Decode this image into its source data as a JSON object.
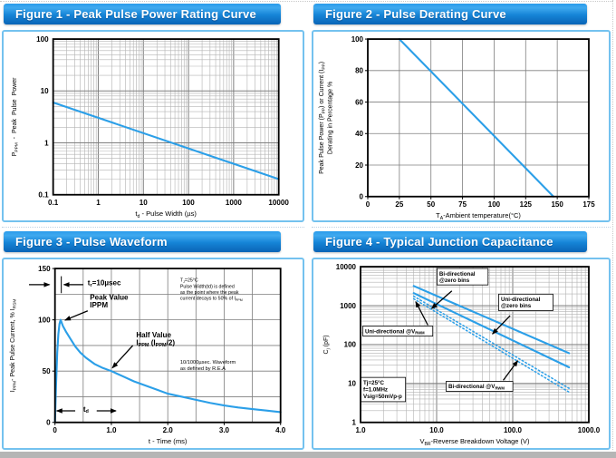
{
  "theme": {
    "header_gradient_top": "#2a9ceb",
    "header_gradient_mid": "#1584d6",
    "header_gradient_bottom": "#0a64b6",
    "header_text": "#ffffff",
    "panel_border": "#74c2ef",
    "line_blue": "#2b9fe8",
    "grid_major": "#7f7f7f",
    "grid_minor": "#b3b3b3",
    "page_edge_gray": "#b5b5b5"
  },
  "figures": [
    {
      "title": "Figure 1 - Peak Pulse Power Rating Curve",
      "chart_data": {
        "type": "line",
        "x_scale": "log",
        "y_scale": "log",
        "x_range": [
          0.1,
          10000
        ],
        "y_range": [
          0.1,
          100
        ],
        "x_ticks": [
          {
            "v": 0.1,
            "label": "0.1"
          },
          {
            "v": 1,
            "label": "1"
          },
          {
            "v": 10,
            "label": "10"
          },
          {
            "v": 100,
            "label": "100"
          },
          {
            "v": 1000,
            "label": "1000"
          },
          {
            "v": 10000,
            "label": "10000"
          }
        ],
        "y_ticks": [
          {
            "v": 0.1,
            "label": "0.1"
          },
          {
            "v": 1,
            "label": "1"
          },
          {
            "v": 10,
            "label": "10"
          },
          {
            "v": 100,
            "label": "100"
          }
        ],
        "xlabel": [
          {
            "t": "t"
          },
          {
            "t": "d",
            "sub": true
          },
          {
            "t": " - Pulse Width (µs)"
          }
        ],
        "ylabel": [
          [
            {
              "t": "P"
            },
            {
              "t": "PPM",
              "sub": true
            },
            {
              "t": "  -  Peak  Pulse  Power"
            }
          ]
        ],
        "series": [
          {
            "name": "peak-pulse-power",
            "style": "solid",
            "points": [
              [
                0.1,
                6
              ],
              [
                10000,
                0.2
              ]
            ]
          }
        ]
      }
    },
    {
      "title": "Figure 2 - Pulse Derating Curve",
      "chart_data": {
        "type": "line",
        "x_scale": "linear",
        "y_scale": "linear",
        "x_range": [
          0,
          175
        ],
        "y_range": [
          0,
          100
        ],
        "x_grid_step": 25,
        "y_grid_step": 20,
        "x_ticks": [
          {
            "v": 0,
            "label": "0"
          },
          {
            "v": 25,
            "label": "25"
          },
          {
            "v": 50,
            "label": "50"
          },
          {
            "v": 75,
            "label": "75"
          },
          {
            "v": 100,
            "label": "100"
          },
          {
            "v": 125,
            "label": "125"
          },
          {
            "v": 150,
            "label": "150"
          },
          {
            "v": 175,
            "label": "175"
          }
        ],
        "y_ticks": [
          {
            "v": 0,
            "label": "0"
          },
          {
            "v": 20,
            "label": "20"
          },
          {
            "v": 40,
            "label": "40"
          },
          {
            "v": 60,
            "label": "60"
          },
          {
            "v": 80,
            "label": "80"
          },
          {
            "v": 100,
            "label": "100"
          }
        ],
        "xlabel": [
          {
            "t": "T"
          },
          {
            "t": "A",
            "sub": true
          },
          {
            "t": "-Ambient temperature(°C)"
          }
        ],
        "ylabel": [
          [
            {
              "t": "Peak Pulse Power (P"
            },
            {
              "t": "PP",
              "sub": true
            },
            {
              "t": ") or Current (I"
            },
            {
              "t": "PP",
              "sub": true
            },
            {
              "t": ")"
            }
          ],
          [
            {
              "t": "Derating in Percentage %"
            }
          ]
        ],
        "series": [
          {
            "name": "derating",
            "style": "solid",
            "points": [
              [
                25,
                100
              ],
              [
                147,
                0
              ]
            ]
          }
        ]
      }
    },
    {
      "title": "Figure 3 - Pulse Waveform",
      "chart_data": {
        "type": "line",
        "x_scale": "linear",
        "y_scale": "linear",
        "x_range": [
          0,
          4
        ],
        "y_range": [
          0,
          150
        ],
        "x_grid_step": 0.5,
        "y_grid_step": 25,
        "x_ticks": [
          {
            "v": 0,
            "label": "0"
          },
          {
            "v": 1,
            "label": "1.0"
          },
          {
            "v": 2,
            "label": "2.0"
          },
          {
            "v": 3,
            "label": "3.0"
          },
          {
            "v": 4,
            "label": "4.0"
          }
        ],
        "y_ticks": [
          {
            "v": 0,
            "label": "0"
          },
          {
            "v": 50,
            "label": "50"
          },
          {
            "v": 100,
            "label": "100"
          },
          {
            "v": 150,
            "label": "150"
          }
        ],
        "xlabel": [
          {
            "t": "t - Time (ms)"
          }
        ],
        "ylabel": [
          [
            {
              "t": "I"
            },
            {
              "t": "PPM",
              "sub": true
            },
            {
              "t": "- Peak Pulse Current, % I"
            },
            {
              "t": "RSM",
              "sub": true
            }
          ]
        ],
        "series": [
          {
            "name": "pulse-waveform",
            "style": "solid",
            "points": [
              [
                0,
                0
              ],
              [
                0.02,
                38
              ],
              [
                0.04,
                68
              ],
              [
                0.06,
                86
              ],
              [
                0.08,
                96
              ],
              [
                0.1,
                100
              ],
              [
                0.14,
                94
              ],
              [
                0.2,
                88
              ],
              [
                0.28,
                81
              ],
              [
                0.36,
                74
              ],
              [
                0.45,
                68
              ],
              [
                0.55,
                63
              ],
              [
                0.7,
                57
              ],
              [
                0.85,
                53
              ],
              [
                1.0,
                50
              ],
              [
                1.2,
                45
              ],
              [
                1.4,
                40
              ],
              [
                1.6,
                36
              ],
              [
                1.8,
                32
              ],
              [
                2.0,
                28
              ],
              [
                2.25,
                25
              ],
              [
                2.5,
                22
              ],
              [
                2.75,
                19
              ],
              [
                3.0,
                16.5
              ],
              [
                3.25,
                14.5
              ],
              [
                3.5,
                13
              ],
              [
                3.75,
                11.5
              ],
              [
                4.0,
                10
              ]
            ]
          }
        ],
        "annotations": [
          {
            "name": "rise-time-label",
            "lines": [
              [
                {
                  "t": "t"
                },
                {
                  "t": "r",
                  "sub": true
                },
                {
                  "t": "=10µsec"
                }
              ]
            ],
            "fx": 0.145,
            "fy": 0.062,
            "size": 8,
            "bold": true,
            "arrows": [
              {
                "from": [
                  -0.115,
                  0.105
                ],
                "to": [
                  -0.025,
                  0.105
                ]
              },
              {
                "from": [
                  0.125,
                  0.105
                ],
                "to": [
                  0.04,
                  0.105
                ]
              }
            ],
            "ticklines": [
              {
                "from": [
                  0.028,
                  0.05
                ],
                "to": [
                  0.028,
                  0.16
                ]
              }
            ]
          },
          {
            "name": "peak-value-label",
            "lines": [
              "Peak Value",
              "IPPM"
            ],
            "fx": 0.155,
            "fy": 0.155,
            "size": 8,
            "bold": true,
            "lh": 8.5,
            "arrows": [
              {
                "from": [
                  0.145,
                  0.275
                ],
                "to": [
                  0.045,
                  0.335
                ]
              }
            ]
          },
          {
            "name": "half-value-label",
            "lines": [
              "Half Value",
              [
                {
                  "t": "I"
                },
                {
                  "t": "PPM",
                  "sub": true
                },
                {
                  "t": " (I"
                },
                {
                  "t": "PPM",
                  "sub": true
                },
                {
                  "t": "/2)"
                }
              ]
            ],
            "fx": 0.36,
            "fy": 0.4,
            "size": 8,
            "bold": true,
            "lh": 8.5,
            "arrows": [
              {
                "from": [
                  0.345,
                  0.5
                ],
                "to": [
                  0.255,
                  0.645
                ]
              }
            ]
          },
          {
            "name": "pulse-width-note",
            "lines": [
              [
                {
                  "t": "T"
                },
                {
                  "t": "J",
                  "sub": true
                },
                {
                  "t": "=25°C"
                }
              ],
              "Pulse Width(td) is defined",
              "as the point where the peak",
              [
                {
                  "t": "current decays to 50% of I"
                },
                {
                  "t": "PPM",
                  "sub": true
                }
              ]
            ],
            "fx": 0.555,
            "fy": 0.055,
            "size": 5.2,
            "lh": 6.6
          },
          {
            "name": "waveform-note",
            "lines": [
              "10/1000µsec. Waveform",
              "as defined by R.E.A"
            ],
            "fx": 0.555,
            "fy": 0.585,
            "size": 5.6,
            "lh": 6.8
          },
          {
            "name": "pulse-width-span",
            "lines": [
              [
                {
                  "t": "t"
                },
                {
                  "t": "d",
                  "sub": true
                }
              ]
            ],
            "fx": 0.125,
            "fy": 0.882,
            "size": 8,
            "bold": true,
            "arrows": [
              {
                "from": [
                  0.09,
                  0.925
                ],
                "to": [
                  0.008,
                  0.925
                ]
              },
              {
                "from": [
                  0.185,
                  0.925
                ],
                "to": [
                  0.27,
                  0.925
                ]
              }
            ]
          }
        ]
      }
    },
    {
      "title": "Figure 4 - Typical Junction Capacitance",
      "chart_data": {
        "type": "line",
        "x_scale": "log",
        "y_scale": "log",
        "x_range": [
          1,
          1000
        ],
        "y_range": [
          1,
          10000
        ],
        "x_ticks": [
          {
            "v": 1,
            "label": "1.0"
          },
          {
            "v": 10,
            "label": "10.0"
          },
          {
            "v": 100,
            "label": "100.0"
          },
          {
            "v": 1000,
            "label": "1000.0"
          }
        ],
        "y_ticks": [
          {
            "v": 1,
            "label": "1"
          },
          {
            "v": 10,
            "label": "10"
          },
          {
            "v": 100,
            "label": "100"
          },
          {
            "v": 1000,
            "label": "1000"
          },
          {
            "v": 10000,
            "label": "10000"
          }
        ],
        "xlabel": [
          {
            "t": "V"
          },
          {
            "t": "BR",
            "sub": true
          },
          {
            "t": "-Reverse Breakdown Voltage (V)"
          }
        ],
        "ylabel": [
          [
            {
              "t": "C"
            },
            {
              "t": "j",
              "sub": true
            },
            {
              "t": " (pF)"
            }
          ]
        ],
        "series": [
          {
            "name": "uni-directional-zero-bias",
            "style": "solid",
            "points": [
              [
                5,
                3200
              ],
              [
                550,
                60
              ]
            ]
          },
          {
            "name": "bi-directional-zero-bias",
            "style": "solid",
            "points": [
              [
                5,
                2100
              ],
              [
                550,
                26
              ]
            ]
          },
          {
            "name": "uni-directional-vrwm",
            "style": "dotted",
            "points": [
              [
                5,
                1750
              ],
              [
                550,
                7.5
              ]
            ]
          },
          {
            "name": "bi-directional-vrwm",
            "style": "dotted",
            "points": [
              [
                5,
                1500
              ],
              [
                550,
                6
              ]
            ]
          }
        ],
        "annotations": [
          {
            "name": "bi-directional-zero-bias-label",
            "boxed": true,
            "bold": true,
            "lines": [
              "Bi-directional",
              "@zero bins"
            ],
            "fx": 0.345,
            "fy": 0.02,
            "size": 6.2,
            "lh": 7,
            "arrows": [
              {
                "from": [
                  0.4,
                  0.155
                ],
                "to": [
                  0.312,
                  0.268
                ]
              }
            ]
          },
          {
            "name": "uni-directional-zero-bias-label",
            "boxed": true,
            "bold": true,
            "lines": [
              "Uni-directional",
              "@zero bins"
            ],
            "fx": 0.615,
            "fy": 0.185,
            "size": 6.2,
            "lh": 7,
            "arrows": [
              {
                "from": [
                  0.655,
                  0.315
                ],
                "to": [
                  0.578,
                  0.432
                ]
              }
            ]
          },
          {
            "name": "uni-directional-vrwm-label",
            "boxed": true,
            "bold": true,
            "lines": [
              [
                {
                  "t": "Uni-directional @V"
                },
                {
                  "t": "RWM",
                  "sub": true
                }
              ]
            ],
            "fx": 0.02,
            "fy": 0.39,
            "size": 6.2,
            "lh": 7,
            "arrows": [
              {
                "from": [
                  0.295,
                  0.375
                ],
                "to": [
                  0.242,
                  0.225
                ]
              }
            ]
          },
          {
            "name": "bi-directional-vrwm-label",
            "boxed": true,
            "bold": true,
            "lines": [
              [
                {
                  "t": "Bi-directional @V"
                },
                {
                  "t": "RWM",
                  "sub": true
                }
              ]
            ],
            "fx": 0.385,
            "fy": 0.745,
            "size": 6.2,
            "lh": 7,
            "arrows": [
              {
                "from": [
                  0.625,
                  0.73
                ],
                "to": [
                  0.688,
                  0.605
                ]
              }
            ]
          },
          {
            "name": "test-conditions",
            "boxed": true,
            "bold": true,
            "lines": [
              "Tj=25°C",
              "f=1.0MHz",
              "Vsig=50mVp-p"
            ],
            "fx": 0.012,
            "fy": 0.72,
            "size": 6.2,
            "lh": 7.5
          }
        ]
      }
    }
  ]
}
